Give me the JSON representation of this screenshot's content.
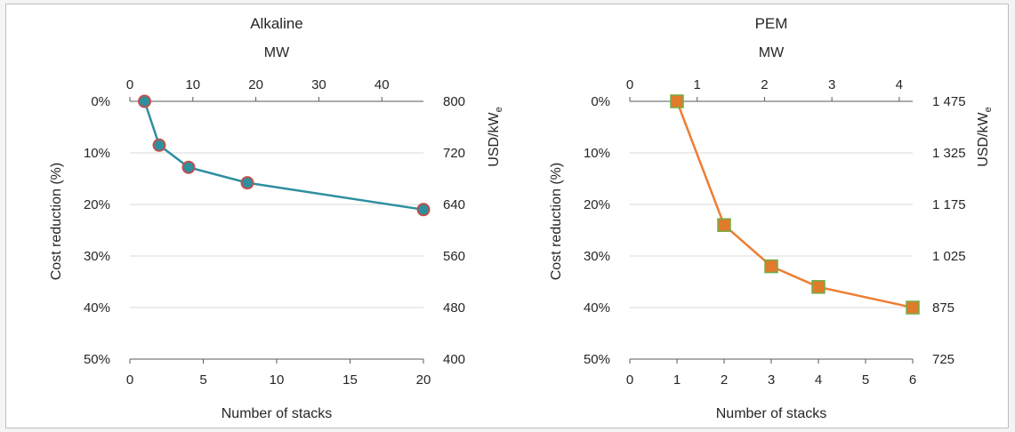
{
  "chart_data": [
    {
      "type": "line",
      "title": "Alkaline",
      "xlabel": "Number of stacks",
      "xlabel_top": "MW",
      "ylabel": "Cost reduction (%)",
      "ylabel_right": "USD/kWe",
      "xlim": [
        0,
        20
      ],
      "x_ticks": [
        0,
        5,
        10,
        15,
        20
      ],
      "x_top_ticks": [
        0,
        10,
        20,
        30,
        40
      ],
      "ylim": [
        0,
        50
      ],
      "y_ticks": [
        0,
        10,
        20,
        30,
        40,
        50
      ],
      "y_tick_labels": [
        "0%",
        "10%",
        "20%",
        "30%",
        "40%",
        "50%"
      ],
      "y_right_tick_labels": [
        "800",
        "720",
        "640",
        "560",
        "480",
        "400"
      ],
      "series": [
        {
          "x": [
            1,
            2,
            4,
            8,
            20
          ],
          "y": [
            0,
            8.5,
            12.8,
            15.8,
            21
          ],
          "color": "#2e8fa0",
          "marker": "circle",
          "marker_edge": "#c0504d"
        }
      ]
    },
    {
      "type": "line",
      "title": "PEM",
      "xlabel": "Number of stacks",
      "xlabel_top": "MW",
      "ylabel": "Cost reduction (%)",
      "ylabel_right": "USD/kWe",
      "xlim": [
        0,
        6
      ],
      "x_ticks": [
        0,
        1,
        2,
        3,
        4,
        5,
        6
      ],
      "x_top_ticks": [
        0,
        1,
        2,
        3,
        4
      ],
      "ylim": [
        0,
        50
      ],
      "y_ticks": [
        0,
        10,
        20,
        30,
        40,
        50
      ],
      "y_tick_labels": [
        "0%",
        "10%",
        "20%",
        "30%",
        "40%",
        "50%"
      ],
      "y_right_tick_labels": [
        "1 475",
        "1 325",
        "1 175",
        "1 025",
        "875",
        "725"
      ],
      "series": [
        {
          "x": [
            1,
            2,
            3,
            4,
            6
          ],
          "y": [
            0,
            24,
            32,
            36,
            40
          ],
          "color": "#ed7d31",
          "marker": "square",
          "marker_fill": "#e07b2c",
          "marker_edge": "#70ad47"
        }
      ]
    }
  ]
}
